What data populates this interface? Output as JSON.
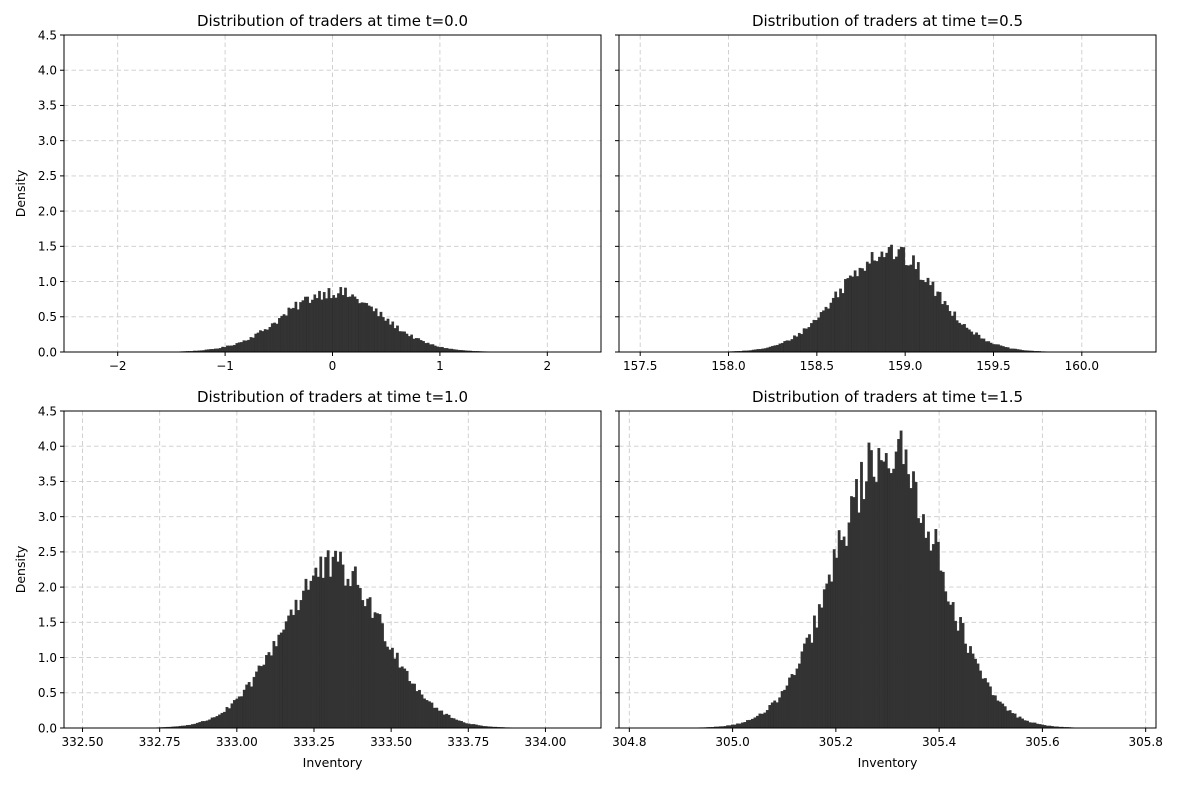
{
  "chart_data": [
    {
      "type": "bar",
      "title": "Distribution of traders at time t=0.0",
      "xlabel": "",
      "ylabel": "Density",
      "xlim": [
        -2.5,
        2.5
      ],
      "ylim": [
        0,
        4.5
      ],
      "xticks": [
        -2,
        -1,
        0,
        1,
        2
      ],
      "xtick_labels": [
        "−2",
        "−1",
        "0",
        "1",
        "2"
      ],
      "yticks": [
        0,
        0.5,
        1,
        1.5,
        2,
        2.5,
        3,
        3.5,
        4,
        4.5
      ],
      "ytick_labels": [
        "0.0",
        "0.5",
        "1.0",
        "1.5",
        "2.0",
        "2.5",
        "3.0",
        "3.5",
        "4.0",
        "4.5"
      ],
      "show_ytick_labels": true,
      "grid": true,
      "distribution": {
        "mean": 0.0,
        "std": 0.45,
        "xmin": -2.2,
        "xmax": 2.2,
        "bins": 200,
        "peak": 0.92
      },
      "bin_centers": [],
      "values": []
    },
    {
      "type": "bar",
      "title": "Distribution of traders at time t=0.5",
      "xlabel": "",
      "ylabel": "",
      "xlim": [
        157.38,
        160.42
      ],
      "ylim": [
        0,
        4.5
      ],
      "xticks": [
        157.5,
        158.0,
        158.5,
        159.0,
        159.5,
        160.0
      ],
      "xtick_labels": [
        "157.5",
        "158.0",
        "158.5",
        "159.0",
        "159.5",
        "160.0"
      ],
      "yticks": [
        0,
        0.5,
        1,
        1.5,
        2,
        2.5,
        3,
        3.5,
        4,
        4.5
      ],
      "ytick_labels": [
        "0.0",
        "0.5",
        "1.0",
        "1.5",
        "2.0",
        "2.5",
        "3.0",
        "3.5",
        "4.0",
        "4.5"
      ],
      "show_ytick_labels": false,
      "grid": true,
      "distribution": {
        "mean": 158.9,
        "std": 0.27,
        "xmin": 157.5,
        "xmax": 160.25,
        "bins": 200,
        "peak": 1.52
      },
      "bin_centers": [],
      "values": []
    },
    {
      "type": "bar",
      "title": "Distribution of traders at time t=1.0",
      "xlabel": "Inventory",
      "ylabel": "Density",
      "xlim": [
        332.44,
        334.18
      ],
      "ylim": [
        0,
        4.5
      ],
      "xticks": [
        332.5,
        332.75,
        333.0,
        333.25,
        333.5,
        333.75,
        334.0
      ],
      "xtick_labels": [
        "332.50",
        "332.75",
        "333.00",
        "333.25",
        "333.50",
        "333.75",
        "334.00"
      ],
      "yticks": [
        0,
        0.5,
        1,
        1.5,
        2,
        2.5,
        3,
        3.5,
        4,
        4.5
      ],
      "ytick_labels": [
        "0.0",
        "0.5",
        "1.0",
        "1.5",
        "2.0",
        "2.5",
        "3.0",
        "3.5",
        "4.0",
        "4.5"
      ],
      "show_ytick_labels": true,
      "grid": true,
      "distribution": {
        "mean": 333.31,
        "std": 0.165,
        "xmin": 332.5,
        "xmax": 334.1,
        "bins": 200,
        "peak": 2.52
      },
      "bin_centers": [],
      "values": []
    },
    {
      "type": "bar",
      "title": "Distribution of traders at time t=1.5",
      "xlabel": "Inventory",
      "ylabel": "",
      "xlim": [
        304.78,
        305.82
      ],
      "ylim": [
        0,
        4.5
      ],
      "xticks": [
        304.8,
        305.0,
        305.2,
        305.4,
        305.6,
        305.8
      ],
      "xtick_labels": [
        "304.8",
        "305.0",
        "305.2",
        "305.4",
        "305.6",
        "305.8"
      ],
      "yticks": [
        0,
        0.5,
        1,
        1.5,
        2,
        2.5,
        3,
        3.5,
        4,
        4.5
      ],
      "ytick_labels": [
        "0.0",
        "0.5",
        "1.0",
        "1.5",
        "2.0",
        "2.5",
        "3.0",
        "3.5",
        "4.0",
        "4.5"
      ],
      "show_ytick_labels": false,
      "grid": true,
      "distribution": {
        "mean": 305.3,
        "std": 0.1,
        "xmin": 304.82,
        "xmax": 305.78,
        "bins": 200,
        "peak": 4.22
      },
      "bin_centers": [],
      "values": []
    }
  ],
  "colors": {
    "bar": "#333333",
    "grid": "#cccccc",
    "frame": "#000000"
  }
}
